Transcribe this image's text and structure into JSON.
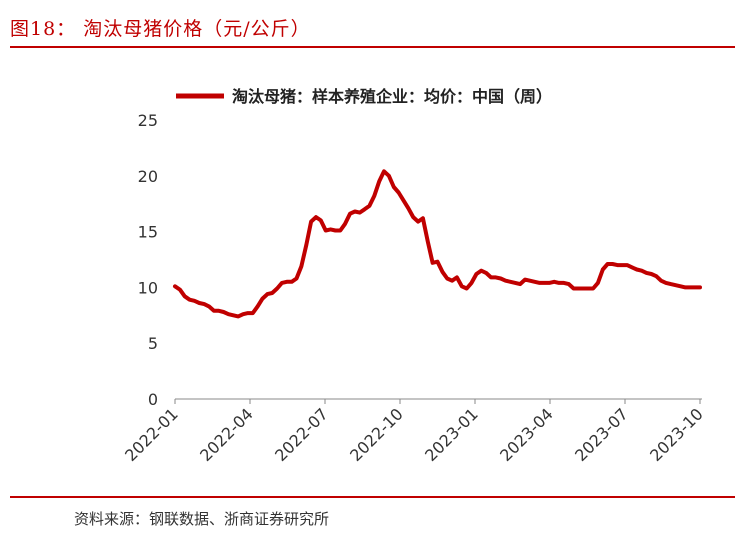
{
  "figure": {
    "title": "图18：  淘汰母猪价格（元/公斤）",
    "source": "资料来源：钢联数据、浙商证券研究所"
  },
  "chart_data": {
    "type": "line",
    "title": "",
    "xlabel": "",
    "ylabel": "",
    "ylim": [
      0,
      25
    ],
    "yticks": [
      0,
      5,
      10,
      15,
      20,
      25
    ],
    "xticks": [
      "2022-01",
      "2022-04",
      "2022-07",
      "2022-10",
      "2023-01",
      "2023-04",
      "2023-07",
      "2023-10"
    ],
    "grid": false,
    "legend_position": "top",
    "series": [
      {
        "name": "淘汰母猪：样本养殖企业：均价：中国（周）",
        "color": "#c00000",
        "x": [
          0,
          1,
          2,
          3,
          4,
          5,
          6,
          7,
          8,
          9,
          10,
          11,
          12,
          13,
          14,
          15,
          16,
          17,
          18,
          19,
          20,
          21,
          22,
          23,
          24,
          25,
          26,
          27,
          28,
          29,
          30,
          31,
          32,
          33,
          34,
          35,
          36,
          37,
          38,
          39,
          40,
          41,
          42,
          43,
          44,
          45,
          46,
          47,
          48,
          49,
          50,
          51,
          52,
          53,
          54,
          55,
          56,
          57,
          58,
          59,
          60,
          61,
          62,
          63,
          64,
          65,
          66,
          67,
          68,
          69,
          70,
          71,
          72,
          73,
          74,
          75,
          76,
          77,
          78,
          79,
          80,
          81,
          82,
          83,
          84,
          85,
          86,
          87,
          88,
          89,
          90,
          91,
          92,
          93,
          94,
          95,
          96,
          97,
          98,
          99,
          100,
          101,
          102,
          103,
          104,
          105,
          106,
          107,
          108
        ],
        "values": [
          10.1,
          9.8,
          9.2,
          8.9,
          8.8,
          8.6,
          8.5,
          8.3,
          7.9,
          7.9,
          7.8,
          7.6,
          7.5,
          7.4,
          7.6,
          7.7,
          7.7,
          8.3,
          9.0,
          9.4,
          9.5,
          9.9,
          10.4,
          10.5,
          10.5,
          10.8,
          11.9,
          13.8,
          15.9,
          16.3,
          16.0,
          15.1,
          15.2,
          15.1,
          15.1,
          15.7,
          16.6,
          16.8,
          16.7,
          17.0,
          17.3,
          18.2,
          19.5,
          20.4,
          20.0,
          19.0,
          18.5,
          17.8,
          17.1,
          16.3,
          15.9,
          16.2,
          14.1,
          12.2,
          12.3,
          11.4,
          10.8,
          10.6,
          10.9,
          10.1,
          9.9,
          10.4,
          11.2,
          11.5,
          11.3,
          10.9,
          10.9,
          10.8,
          10.6,
          10.5,
          10.4,
          10.3,
          10.7,
          10.6,
          10.5,
          10.4,
          10.4,
          10.4,
          10.5,
          10.4,
          10.4,
          10.3,
          9.9,
          9.9,
          9.9,
          9.9,
          9.9,
          10.4,
          11.6,
          12.1,
          12.1,
          12.0,
          12.0,
          12.0,
          11.8,
          11.6,
          11.5,
          11.3,
          11.2,
          11.0,
          10.6,
          10.4,
          10.3,
          10.2,
          10.1,
          10.0,
          10.0,
          10.0,
          10.0
        ],
        "x_start": "2022-01",
        "x_end": "2023-10"
      }
    ]
  }
}
